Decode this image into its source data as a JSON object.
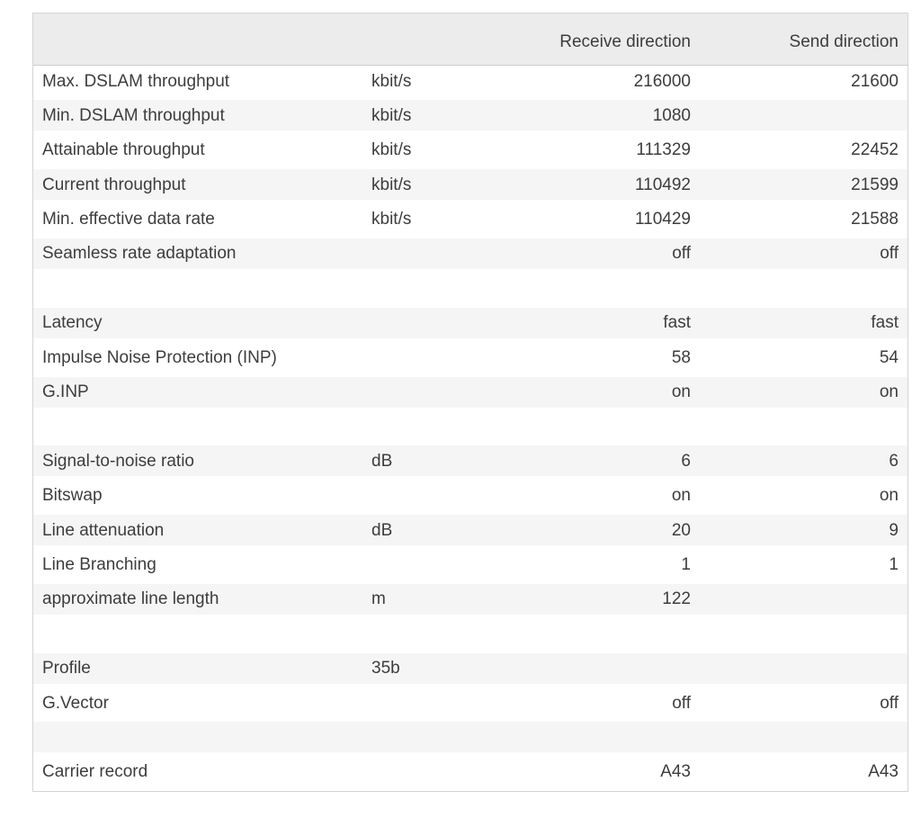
{
  "table": {
    "header": {
      "label": "",
      "unit": "",
      "receive": "Receive direction",
      "send": "Send direction"
    },
    "rows": [
      {
        "label": "Max. DSLAM throughput",
        "unit": "kbit/s",
        "receive": "216000",
        "send": "21600"
      },
      {
        "label": "Min. DSLAM throughput",
        "unit": "kbit/s",
        "receive": "1080",
        "send": ""
      },
      {
        "label": "Attainable throughput",
        "unit": "kbit/s",
        "receive": "111329",
        "send": "22452"
      },
      {
        "label": "Current throughput",
        "unit": "kbit/s",
        "receive": "110492",
        "send": "21599"
      },
      {
        "label": "Min. effective data rate",
        "unit": "kbit/s",
        "receive": "110429",
        "send": "21588"
      },
      {
        "label": "Seamless rate adaptation",
        "unit": "",
        "receive": "off",
        "send": "off"
      },
      {
        "spacer": true,
        "label": "",
        "unit": "",
        "receive": "",
        "send": ""
      },
      {
        "label": "Latency",
        "unit": "",
        "receive": "fast",
        "send": "fast"
      },
      {
        "label": "Impulse Noise Protection (INP)",
        "unit": "",
        "receive": "58",
        "send": "54"
      },
      {
        "label": "G.INP",
        "unit": "",
        "receive": "on",
        "send": "on"
      },
      {
        "spacer": true,
        "label": "",
        "unit": "",
        "receive": "",
        "send": ""
      },
      {
        "label": "Signal-to-noise ratio",
        "unit": "dB",
        "receive": "6",
        "send": "6"
      },
      {
        "label": "Bitswap",
        "unit": "",
        "receive": "on",
        "send": "on"
      },
      {
        "label": "Line attenuation",
        "unit": "dB",
        "receive": "20",
        "send": "9"
      },
      {
        "label": "Line Branching",
        "unit": "",
        "receive": "1",
        "send": "1"
      },
      {
        "label": "approximate line length",
        "unit": "m",
        "receive": "122",
        "send": ""
      },
      {
        "spacer": true,
        "label": "",
        "unit": "",
        "receive": "",
        "send": ""
      },
      {
        "label": "Profile",
        "unit": "35b",
        "receive": "",
        "send": ""
      },
      {
        "label": "G.Vector",
        "unit": "",
        "receive": "off",
        "send": "off"
      },
      {
        "spacer": true,
        "label": "",
        "unit": "",
        "receive": "",
        "send": ""
      },
      {
        "label": "Carrier record",
        "unit": "",
        "receive": "A43",
        "send": "A43"
      }
    ],
    "colors": {
      "header_bg": "#ececec",
      "stripe_bg": "#f5f5f5",
      "row_bg": "#ffffff",
      "border": "#d4d4d4",
      "text": "#3d3d3d"
    }
  }
}
